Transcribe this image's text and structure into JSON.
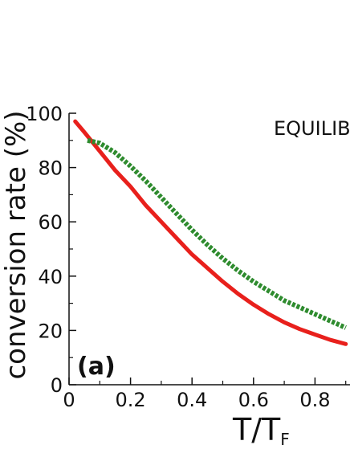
{
  "chart_data": {
    "type": "line",
    "xlabel": "T/T",
    "xlabel_subscript": "F",
    "ylabel": "conversion rate (%)",
    "panel_label": "(a)",
    "annotation": "EQUILIB",
    "xlim": [
      0,
      0.9
    ],
    "ylim": [
      0,
      100
    ],
    "xticks": [
      "0",
      "0.2",
      "0.4",
      "0.6",
      "0.8"
    ],
    "xtick_values": [
      0,
      0.2,
      0.4,
      0.6,
      0.8
    ],
    "yticks": [
      "0",
      "20",
      "40",
      "60",
      "80",
      "100"
    ],
    "ytick_values": [
      0,
      20,
      40,
      60,
      80,
      100
    ],
    "series": [
      {
        "color": "#e8201c",
        "style": "solid",
        "x": [
          0.02,
          0.05,
          0.1,
          0.15,
          0.2,
          0.25,
          0.3,
          0.35,
          0.4,
          0.45,
          0.5,
          0.55,
          0.6,
          0.65,
          0.7,
          0.75,
          0.8,
          0.85,
          0.9
        ],
        "y": [
          97,
          93,
          86,
          79,
          73,
          66,
          60,
          54,
          48,
          43,
          38,
          33.5,
          29.5,
          26,
          23,
          20.5,
          18.5,
          16.5,
          15
        ]
      },
      {
        "color": "#2e8b2e",
        "style": "dotted",
        "x": [
          0.06,
          0.1,
          0.15,
          0.2,
          0.25,
          0.3,
          0.35,
          0.4,
          0.45,
          0.5,
          0.55,
          0.6,
          0.65,
          0.7,
          0.75,
          0.8,
          0.85,
          0.9
        ],
        "y": [
          90,
          89,
          85.5,
          80.5,
          75,
          69,
          63,
          57,
          51.5,
          46.5,
          42,
          38,
          34.5,
          31,
          28.5,
          26,
          23.5,
          21
        ]
      }
    ]
  }
}
